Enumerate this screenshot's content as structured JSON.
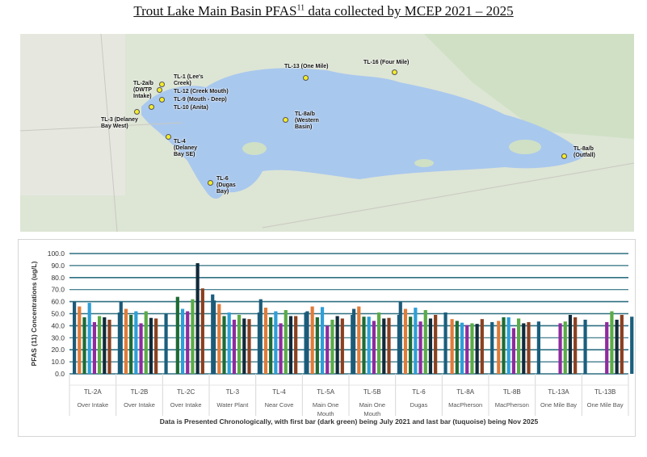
{
  "title": {
    "main": "Trout Lake Main Basin PFAS",
    "sup": "11",
    "rest": " data collected by MCEP 2021 – 2025"
  },
  "map": {
    "sites": [
      {
        "id": "tl-1",
        "label": "TL-1 (Lee's\nCreek)"
      },
      {
        "id": "tl-2ab",
        "label": "TL-2a/b\n(DWTP\nIntake)"
      },
      {
        "id": "tl-12",
        "label": "TL-12 (Creek Mouth)"
      },
      {
        "id": "tl-9",
        "label": "TL-9 (Mouth - Deep)"
      },
      {
        "id": "tl-10",
        "label": "TL-10 (Anita)"
      },
      {
        "id": "tl-3",
        "label": "TL-3 (Delaney\nBay West)"
      },
      {
        "id": "tl-4",
        "label": "TL-4\n(Delaney\nBay SE)"
      },
      {
        "id": "tl-6",
        "label": "TL-6\n(Dugas\nBay)"
      },
      {
        "id": "tl-13",
        "label": "TL-13 (One Mile)"
      },
      {
        "id": "tl-16",
        "label": "TL-16 (Four Mile)"
      },
      {
        "id": "tl-8ab-western",
        "label": "TL-8a/b\n(Western\nBasin)"
      },
      {
        "id": "tl-8ab-outfall",
        "label": "TL-8a/b\n(Outfall)"
      }
    ],
    "colors": {
      "land": "#dfe6d8",
      "water": "#a9c8ee",
      "marker": "#f4ec2a"
    }
  },
  "chart_data": {
    "type": "bar",
    "ylabel": "PFAS (11) Concentrations (ug/L)",
    "ylim": [
      0,
      100
    ],
    "yticks": [
      "0.0",
      "10.0",
      "20.0",
      "30.0",
      "40.0",
      "50.0",
      "60.0",
      "70.0",
      "80.0",
      "90.0",
      "100.0"
    ],
    "grid": true,
    "categories": [
      "TL-2A",
      "TL-2B",
      "TL-2C",
      "TL-3",
      "TL-4",
      "TL-5A",
      "TL-5B",
      "TL-6",
      "TL-8A",
      "TL-8B",
      "TL-13A",
      "TL-13B"
    ],
    "subcategories": [
      "Over Intake",
      "Over Intake",
      "Over Intake",
      "Water Plant",
      "Near Cove",
      "Main One Mouth",
      "Main One Mouth",
      "Dugas",
      "MacPherson",
      "MacPherson",
      "One Mile Bay",
      "One Mile Bay"
    ],
    "series": [
      {
        "color": "#1d5a78",
        "values": [
          60,
          60,
          null,
          61,
          62,
          52,
          54,
          60,
          null,
          null,
          null,
          null
        ]
      },
      {
        "color": "#e07b39",
        "values": [
          56,
          54,
          null,
          58,
          55,
          56,
          56,
          54,
          45.5,
          44,
          null,
          null
        ]
      },
      {
        "color": "#1e6b34",
        "values": [
          47,
          49,
          64,
          48,
          47,
          47,
          47.5,
          47.5,
          44,
          47,
          null,
          null
        ]
      },
      {
        "color": "#2e9fd8",
        "values": [
          59,
          52,
          54,
          51,
          52,
          55.5,
          47.5,
          55,
          42.5,
          47,
          null,
          null
        ]
      },
      {
        "color": "#8e2b9e",
        "values": [
          43,
          42,
          52,
          45,
          42,
          40,
          44,
          43.5,
          40.5,
          38,
          42,
          43
        ]
      },
      {
        "color": "#5aab46",
        "values": [
          48,
          52,
          62,
          49,
          53,
          45,
          51,
          53,
          42,
          46,
          43.5,
          52
        ]
      },
      {
        "color": "#112a3a",
        "values": [
          47,
          46.5,
          92,
          46,
          48,
          48,
          46,
          46,
          41.5,
          42,
          49,
          45
        ]
      },
      {
        "color": "#8a4020",
        "values": [
          45,
          46,
          71,
          45.5,
          48,
          46,
          46.5,
          49,
          45.5,
          43,
          47,
          49
        ]
      },
      {
        "color": "#1a5e7d",
        "values": [
          51,
          50,
          66,
          51,
          51,
          49,
          49,
          51,
          43,
          43.5,
          45,
          47.5
        ]
      }
    ],
    "caption": "Data is Presented Chronologically,  with first bar (dark green) being July 2021 and last bar (tuquoise) being Nov 2025"
  }
}
